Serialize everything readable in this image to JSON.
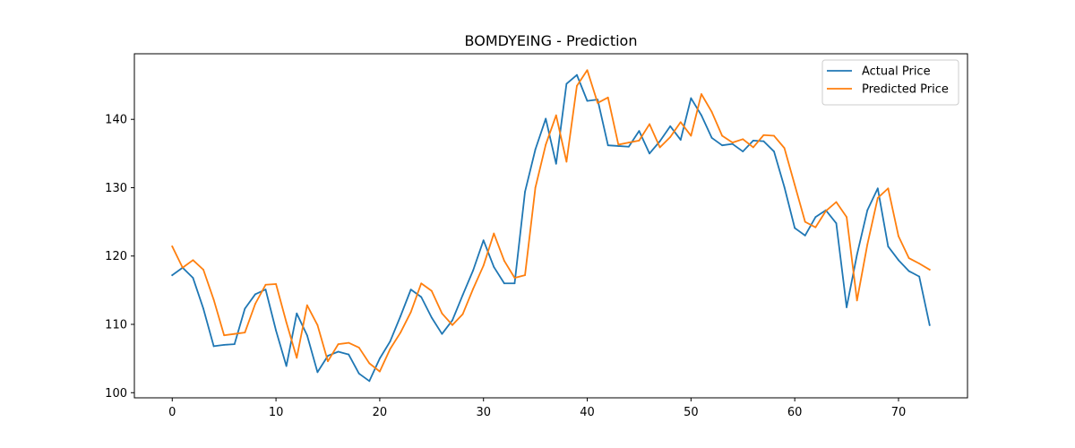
{
  "chart_data": {
    "type": "line",
    "title": "BOMDYEING - Prediction",
    "xlabel": "",
    "ylabel": "",
    "xlim": [
      -3.65,
      76.65
    ],
    "ylim": [
      99.25,
      149.6
    ],
    "xticks": [
      0,
      10,
      20,
      30,
      40,
      50,
      60,
      70
    ],
    "yticks": [
      100,
      110,
      120,
      130,
      140
    ],
    "grid": false,
    "legend_position": "top-right",
    "series": [
      {
        "name": "Actual Price",
        "color": "#1f77b4",
        "x": [
          0,
          1,
          2,
          3,
          4,
          5,
          6,
          7,
          8,
          9,
          10,
          11,
          12,
          13,
          14,
          15,
          16,
          17,
          18,
          19,
          20,
          21,
          22,
          23,
          24,
          25,
          26,
          27,
          28,
          29,
          30,
          31,
          32,
          33,
          34,
          35,
          36,
          37,
          38,
          39,
          40,
          41,
          42,
          43,
          44,
          45,
          46,
          47,
          48,
          49,
          50,
          51,
          52,
          53,
          54,
          55,
          56,
          57,
          58,
          59,
          60,
          61,
          62,
          63,
          64,
          65,
          66,
          67,
          68,
          69,
          70,
          71,
          72,
          73
        ],
        "values": [
          117.2,
          118.3,
          116.8,
          112.3,
          106.8,
          107.0,
          107.1,
          112.3,
          114.4,
          115.1,
          109.1,
          103.9,
          111.6,
          108.4,
          103.0,
          105.4,
          106.0,
          105.6,
          102.8,
          101.7,
          105.0,
          107.5,
          111.2,
          115.1,
          114.0,
          111.0,
          108.6,
          110.6,
          114.3,
          117.9,
          122.3,
          118.4,
          116.0,
          116.0,
          129.4,
          135.6,
          140.1,
          133.5,
          145.2,
          146.5,
          142.7,
          142.9,
          136.2,
          136.1,
          136.0,
          138.3,
          135.0,
          136.8,
          139.0,
          137.0,
          143.1,
          140.6,
          137.3,
          136.2,
          136.4,
          135.3,
          136.9,
          136.8,
          135.3,
          130.1,
          124.1,
          123.0,
          125.7,
          126.7,
          124.8,
          112.5,
          120.2,
          126.7,
          129.9,
          121.4,
          119.4,
          117.8,
          117.0,
          109.9
        ]
      },
      {
        "name": "Predicted Price",
        "color": "#ff7f0e",
        "x": [
          0,
          1,
          2,
          3,
          4,
          5,
          6,
          7,
          8,
          9,
          10,
          11,
          12,
          13,
          14,
          15,
          16,
          17,
          18,
          19,
          20,
          21,
          22,
          23,
          24,
          25,
          26,
          27,
          28,
          29,
          30,
          31,
          32,
          33,
          34,
          35,
          36,
          37,
          38,
          39,
          40,
          41,
          42,
          43,
          44,
          45,
          46,
          47,
          48,
          49,
          50,
          51,
          52,
          53,
          54,
          55,
          56,
          57,
          58,
          59,
          60,
          61,
          62,
          63,
          64,
          65,
          66,
          67,
          68,
          69,
          70,
          71,
          72,
          73
        ],
        "values": [
          121.4,
          118.3,
          119.4,
          118.0,
          113.6,
          108.4,
          108.6,
          108.8,
          113.0,
          115.8,
          115.9,
          110.3,
          105.1,
          112.8,
          109.9,
          104.6,
          107.1,
          107.3,
          106.6,
          104.3,
          103.1,
          106.4,
          108.8,
          111.8,
          116.0,
          114.9,
          111.6,
          109.9,
          111.5,
          115.2,
          118.6,
          123.3,
          119.3,
          116.8,
          117.2,
          130.0,
          136.3,
          140.6,
          133.8,
          144.9,
          147.2,
          142.4,
          143.2,
          136.3,
          136.6,
          136.9,
          139.3,
          135.9,
          137.4,
          139.6,
          137.6,
          143.7,
          141.1,
          137.6,
          136.6,
          137.1,
          135.9,
          137.7,
          137.6,
          135.8,
          130.4,
          125.0,
          124.2,
          126.6,
          127.9,
          125.7,
          113.5,
          121.7,
          128.5,
          129.9,
          122.9,
          119.7,
          118.9,
          118.0
        ]
      }
    ]
  }
}
